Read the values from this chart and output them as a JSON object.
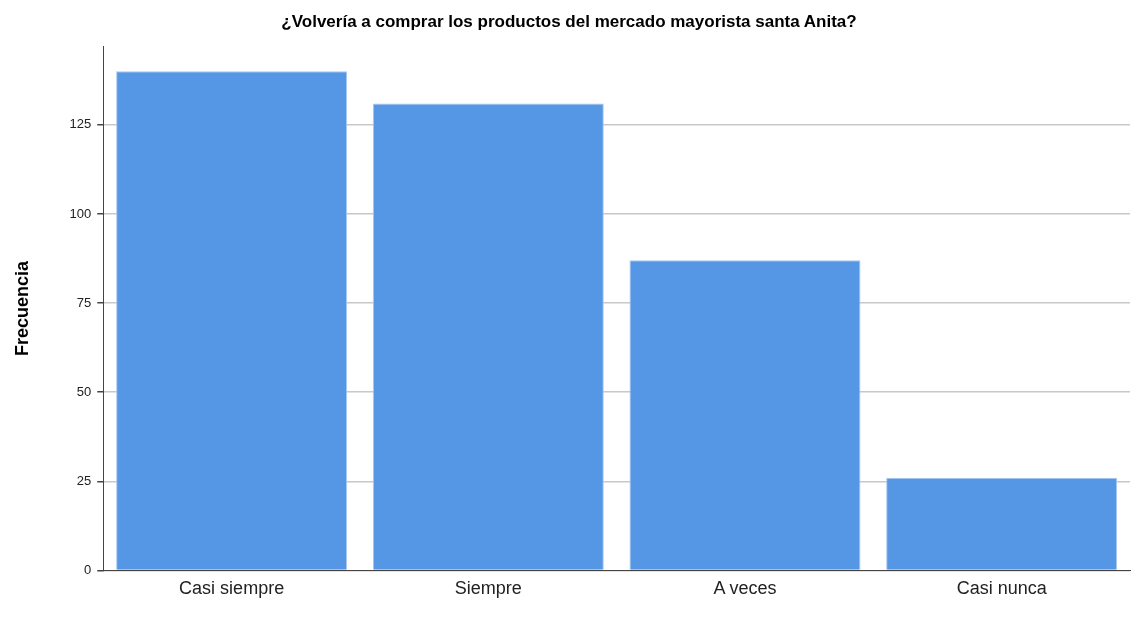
{
  "chart_data": {
    "type": "bar",
    "title": "¿Volvería a comprar los productos del mercado mayorista santa Anita?",
    "ylabel": "Frecuencia",
    "categories": [
      "Casi siempre",
      "Siempre",
      "A veces",
      "Casi nunca"
    ],
    "values": [
      140,
      131,
      87,
      26
    ],
    "color": "#5596e5",
    "ylim": [
      0,
      147
    ],
    "yticks": [
      0,
      25,
      50,
      75,
      100,
      125
    ],
    "grid": "y",
    "legend": false
  }
}
